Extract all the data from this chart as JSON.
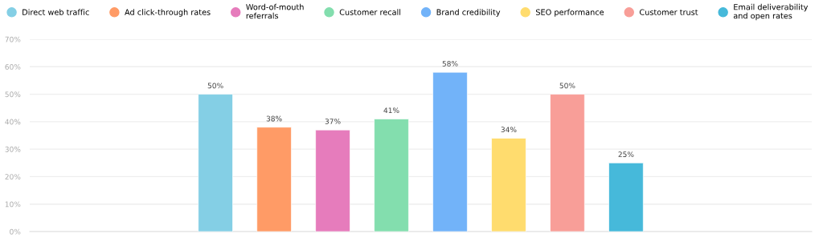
{
  "chart_data": {
    "type": "bar",
    "categories": [
      null
    ],
    "series": [
      {
        "name": "Direct web traffic",
        "color": "#84cfe5",
        "values": [
          50
        ],
        "value_labels": [
          "50%"
        ]
      },
      {
        "name": "Ad click-through rates",
        "color": "#ff9b66",
        "values": [
          38
        ],
        "value_labels": [
          "38%"
        ]
      },
      {
        "name": "Word-of-mouth\nreferrals",
        "color": "#e67cbc",
        "values": [
          37
        ],
        "value_labels": [
          "37%"
        ]
      },
      {
        "name": "Customer recall",
        "color": "#83deae",
        "values": [
          41
        ],
        "value_labels": [
          "41%"
        ]
      },
      {
        "name": "Brand credibility",
        "color": "#72b3f9",
        "values": [
          58
        ],
        "value_labels": [
          "58%"
        ]
      },
      {
        "name": "SEO performance",
        "color": "#ffdc6e",
        "values": [
          34
        ],
        "value_labels": [
          "34%"
        ]
      },
      {
        "name": "Customer trust",
        "color": "#f89e98",
        "values": [
          50
        ],
        "value_labels": [
          "50%"
        ]
      },
      {
        "name": "Email deliverability\nand open rates",
        "color": "#46b9da",
        "values": [
          25
        ],
        "value_labels": [
          "25%"
        ]
      }
    ],
    "ylim": [
      0,
      70
    ],
    "yticks": [
      {
        "value": 0,
        "label": "0%"
      },
      {
        "value": 10,
        "label": "10%"
      },
      {
        "value": 20,
        "label": "20%"
      },
      {
        "value": 30,
        "label": "30%"
      },
      {
        "value": 40,
        "label": "40%"
      },
      {
        "value": 50,
        "label": "50%"
      },
      {
        "value": 60,
        "label": "60%"
      },
      {
        "value": 70,
        "label": "70%"
      }
    ],
    "grid": "y",
    "legend": "top left"
  }
}
